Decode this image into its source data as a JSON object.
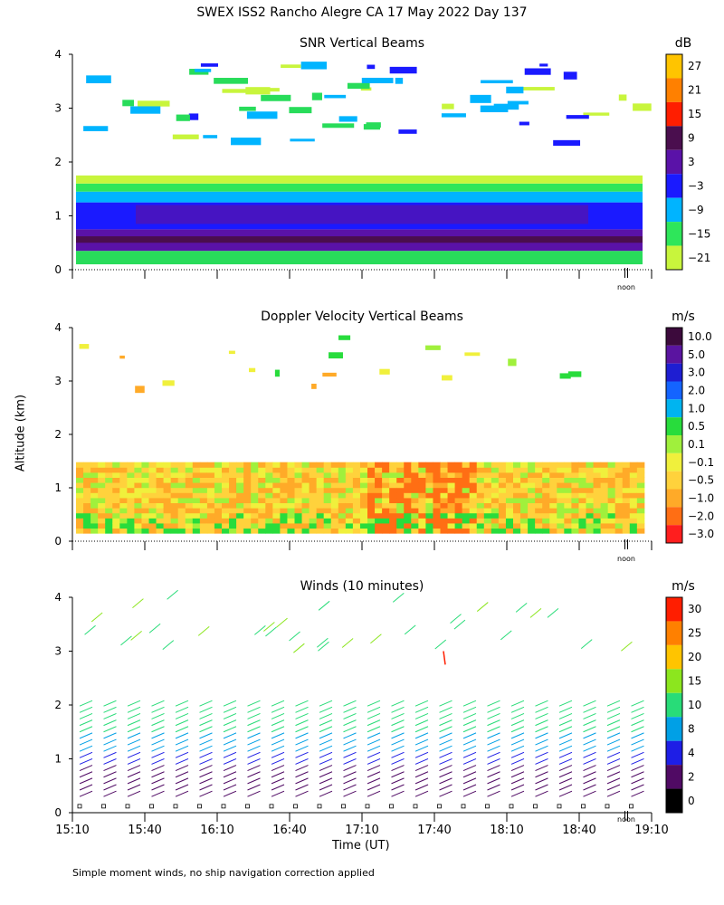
{
  "title": "SWEX ISS2 Rancho Alegre CA  17 May 2022 Day 137",
  "footnote": "Simple moment winds, no ship navigation correction applied",
  "ylabel": "Altitude (km)",
  "xlabel": "Time (UT)",
  "noon_label": "noon",
  "chart_data": [
    {
      "type": "heatmap",
      "title": "SNR Vertical Beams",
      "units": "dB",
      "x": [
        "15:10",
        "15:40",
        "16:10",
        "16:40",
        "17:10",
        "17:40",
        "18:10",
        "18:40",
        "19:10"
      ],
      "ylim": [
        0,
        4
      ],
      "yticks": [
        "0",
        "1",
        "2",
        "3",
        "4"
      ],
      "colorbar": {
        "ticks": [
          "27",
          "21",
          "15",
          "9",
          "3",
          "−3",
          "−9",
          "−15",
          "−21"
        ],
        "colors": [
          "#ffc400",
          "#ff8000",
          "#ff1e00",
          "#4a0e4e",
          "#5a12a8",
          "#1a1aff",
          "#00b4ff",
          "#2ee65a",
          "#c8f53c"
        ]
      }
    },
    {
      "type": "heatmap",
      "title": "Doppler Velocity Vertical Beams",
      "units": "m/s",
      "x": [
        "15:10",
        "15:40",
        "16:10",
        "16:40",
        "17:10",
        "17:40",
        "18:10",
        "18:40",
        "19:10"
      ],
      "ylim": [
        0,
        4
      ],
      "yticks": [
        "0",
        "1",
        "2",
        "3",
        "4"
      ],
      "colorbar": {
        "ticks": [
          "10.0",
          "5.0",
          "3.0",
          "2.0",
          "1.0",
          "0.5",
          "0.1",
          "−0.1",
          "−0.5",
          "−1.0",
          "−2.0",
          "−3.0"
        ],
        "colors": [
          "#3c0a3c",
          "#5a14a0",
          "#1e1ed2",
          "#1464ff",
          "#00b4f0",
          "#28dc3c",
          "#a0f03c",
          "#f0f03c",
          "#ffd23c",
          "#ffaa28",
          "#ff6e14",
          "#ff1e1e"
        ]
      }
    },
    {
      "type": "wind_barbs",
      "title": "Winds (10 minutes)",
      "units": "m/s",
      "x": [
        "15:10",
        "15:40",
        "16:10",
        "16:40",
        "17:10",
        "17:40",
        "18:10",
        "18:40",
        "19:10"
      ],
      "ylim": [
        0,
        4
      ],
      "yticks": [
        "0",
        "1",
        "2",
        "3",
        "4"
      ],
      "colorbar": {
        "ticks": [
          "30",
          "25",
          "20",
          "15",
          "10",
          "8",
          "4",
          "2",
          "0"
        ],
        "colors": [
          "#ff1e00",
          "#ff8000",
          "#ffc400",
          "#8ce61e",
          "#28dc78",
          "#00a0e6",
          "#1e1ee6",
          "#500a64",
          "#000000"
        ]
      }
    }
  ]
}
